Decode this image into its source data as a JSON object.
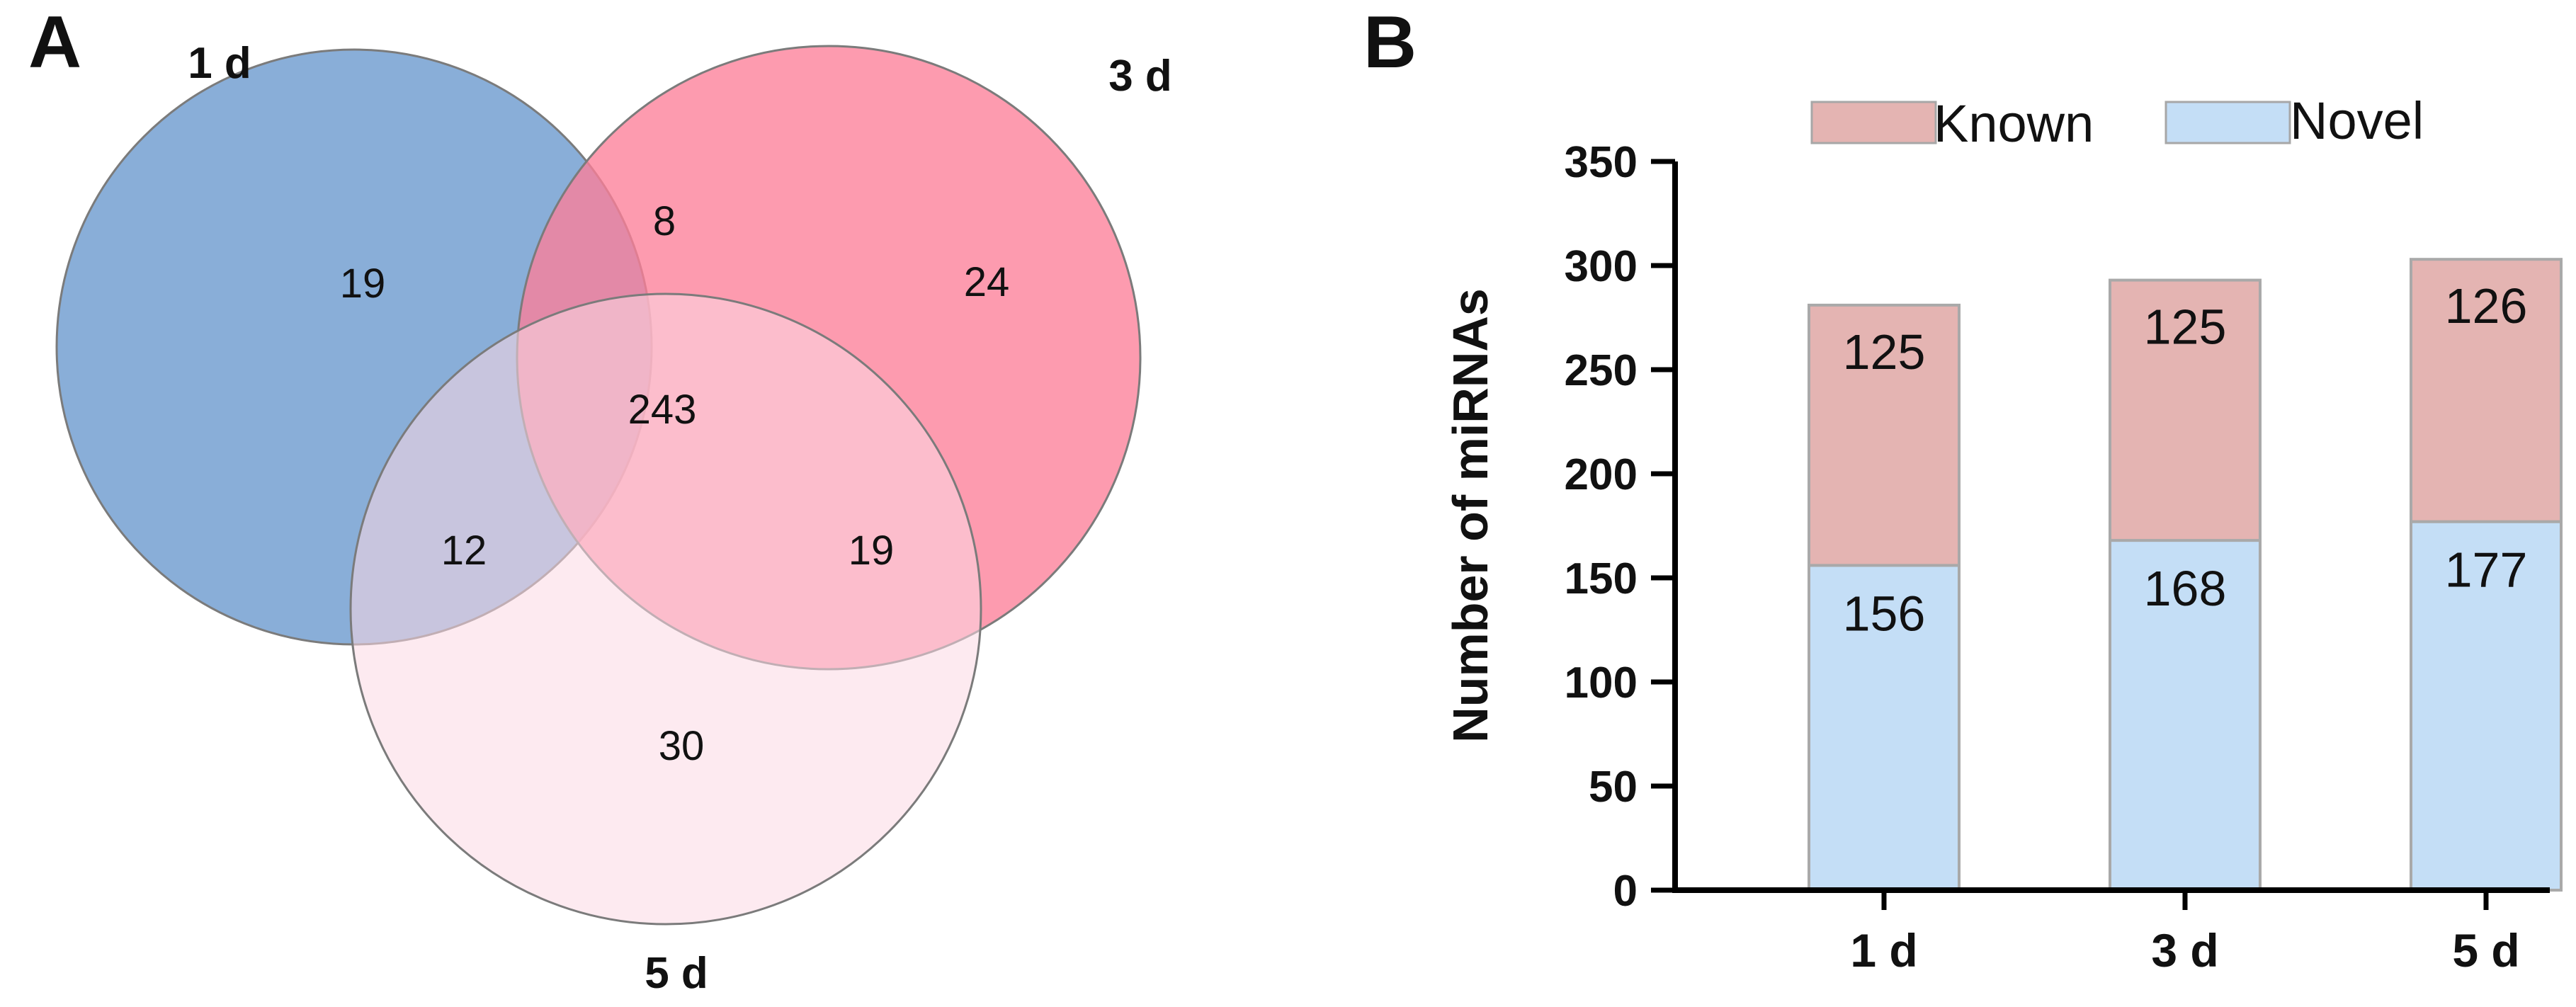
{
  "figure": {
    "panel_a_label": "A",
    "panel_b_label": "B"
  },
  "venn": {
    "sets": [
      {
        "name": "1 d",
        "color": "#6f9ccf"
      },
      {
        "name": "3 d",
        "color": "#fc7f99"
      },
      {
        "name": "5 d",
        "color": "#fbd9e3"
      }
    ],
    "regions": {
      "only_1d": 19,
      "only_3d": 24,
      "only_5d": 30,
      "1d_3d": 8,
      "1d_5d": 12,
      "3d_5d": 19,
      "all": 243
    }
  },
  "chart_data": {
    "type": "bar",
    "stacked": true,
    "categories": [
      "1 d",
      "3 d",
      "5 d"
    ],
    "series": [
      {
        "name": "Novel",
        "color": "#c4def6",
        "values": [
          156,
          168,
          177
        ]
      },
      {
        "name": "Known",
        "color": "#e4b4b2",
        "values": [
          125,
          125,
          126
        ]
      }
    ],
    "legend": [
      "Known",
      "Novel"
    ],
    "title": "",
    "xlabel": "",
    "ylabel": "Number of miRNAs",
    "ylim": [
      0,
      350
    ],
    "yticks": [
      0,
      50,
      100,
      150,
      200,
      250,
      300,
      350
    ],
    "legend_position": "top"
  }
}
